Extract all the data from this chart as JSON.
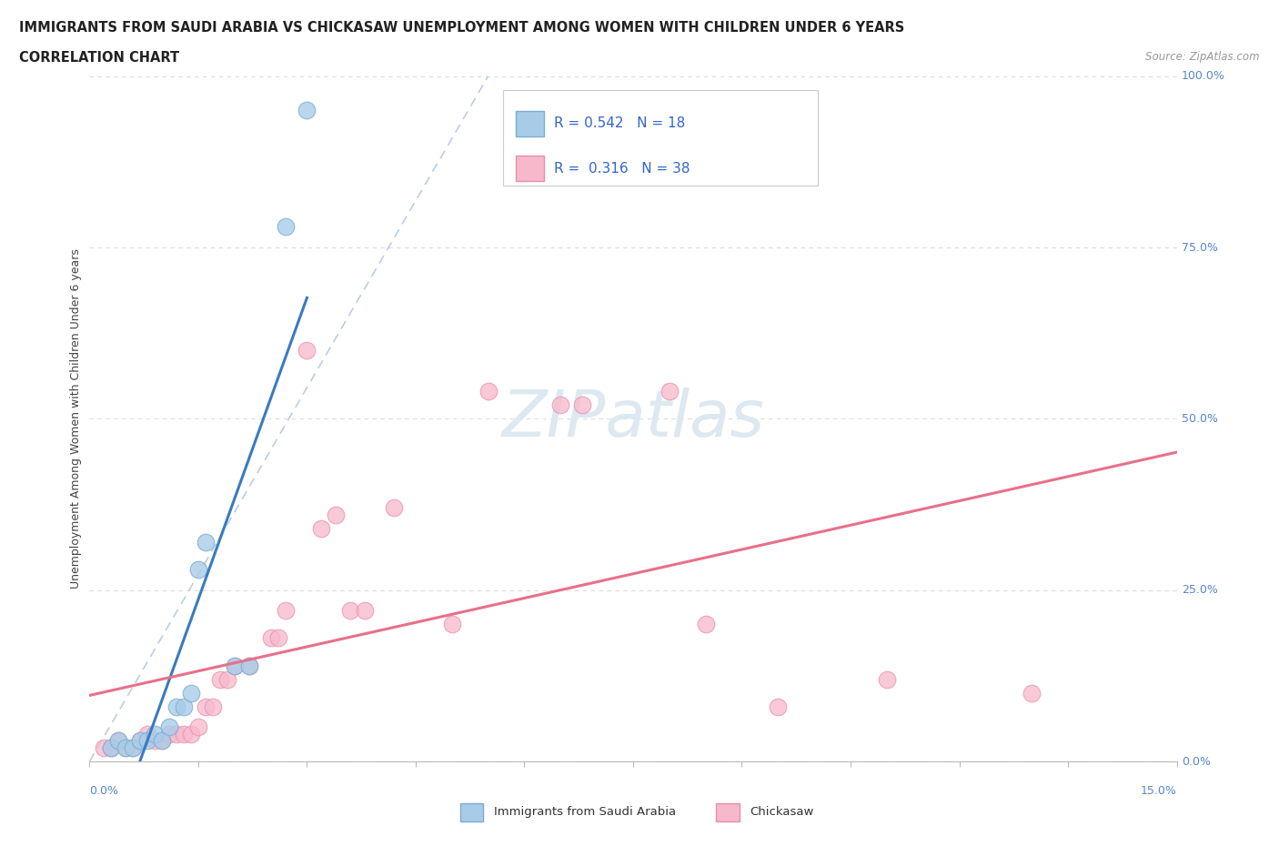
{
  "title_line1": "IMMIGRANTS FROM SAUDI ARABIA VS CHICKASAW UNEMPLOYMENT AMONG WOMEN WITH CHILDREN UNDER 6 YEARS",
  "title_line2": "CORRELATION CHART",
  "source": "Source: ZipAtlas.com",
  "ylabel": "Unemployment Among Women with Children Under 6 years",
  "xlim": [
    0.0,
    0.15
  ],
  "ylim": [
    0.0,
    1.0
  ],
  "legend_label_1": "Immigrants from Saudi Arabia",
  "legend_label_2": "Chickasaw",
  "R1": 0.542,
  "N1": 18,
  "R2": 0.316,
  "N2": 38,
  "color_blue": "#a8cce8",
  "color_blue_edge": "#7aadd4",
  "color_blue_line": "#3a7bbf",
  "color_pink": "#f7b8cc",
  "color_pink_edge": "#e890ab",
  "color_pink_line": "#e8708a",
  "color_dashed": "#a0b8d8",
  "background_color": "#ffffff",
  "ytick_labels": [
    "0.0%",
    "25.0%",
    "50.0%",
    "75.0%",
    "100.0%"
  ],
  "ytick_values": [
    0.0,
    0.25,
    0.5,
    0.75,
    1.0
  ],
  "blue_scatter": [
    [
      0.003,
      0.02
    ],
    [
      0.004,
      0.03
    ],
    [
      0.005,
      0.02
    ],
    [
      0.006,
      0.02
    ],
    [
      0.007,
      0.03
    ],
    [
      0.008,
      0.03
    ],
    [
      0.009,
      0.04
    ],
    [
      0.01,
      0.03
    ],
    [
      0.011,
      0.05
    ],
    [
      0.012,
      0.08
    ],
    [
      0.013,
      0.08
    ],
    [
      0.014,
      0.1
    ],
    [
      0.015,
      0.28
    ],
    [
      0.016,
      0.32
    ],
    [
      0.02,
      0.14
    ],
    [
      0.022,
      0.14
    ],
    [
      0.027,
      0.78
    ],
    [
      0.03,
      0.95
    ]
  ],
  "pink_scatter": [
    [
      0.002,
      0.02
    ],
    [
      0.003,
      0.02
    ],
    [
      0.004,
      0.03
    ],
    [
      0.005,
      0.02
    ],
    [
      0.006,
      0.02
    ],
    [
      0.007,
      0.03
    ],
    [
      0.008,
      0.04
    ],
    [
      0.009,
      0.03
    ],
    [
      0.01,
      0.03
    ],
    [
      0.011,
      0.04
    ],
    [
      0.012,
      0.04
    ],
    [
      0.013,
      0.04
    ],
    [
      0.014,
      0.04
    ],
    [
      0.015,
      0.05
    ],
    [
      0.016,
      0.08
    ],
    [
      0.017,
      0.08
    ],
    [
      0.018,
      0.12
    ],
    [
      0.019,
      0.12
    ],
    [
      0.02,
      0.14
    ],
    [
      0.022,
      0.14
    ],
    [
      0.025,
      0.18
    ],
    [
      0.026,
      0.18
    ],
    [
      0.027,
      0.22
    ],
    [
      0.03,
      0.6
    ],
    [
      0.032,
      0.34
    ],
    [
      0.034,
      0.36
    ],
    [
      0.036,
      0.22
    ],
    [
      0.038,
      0.22
    ],
    [
      0.042,
      0.37
    ],
    [
      0.05,
      0.2
    ],
    [
      0.055,
      0.54
    ],
    [
      0.065,
      0.52
    ],
    [
      0.068,
      0.52
    ],
    [
      0.08,
      0.54
    ],
    [
      0.085,
      0.2
    ],
    [
      0.095,
      0.08
    ],
    [
      0.11,
      0.12
    ],
    [
      0.13,
      0.1
    ]
  ]
}
